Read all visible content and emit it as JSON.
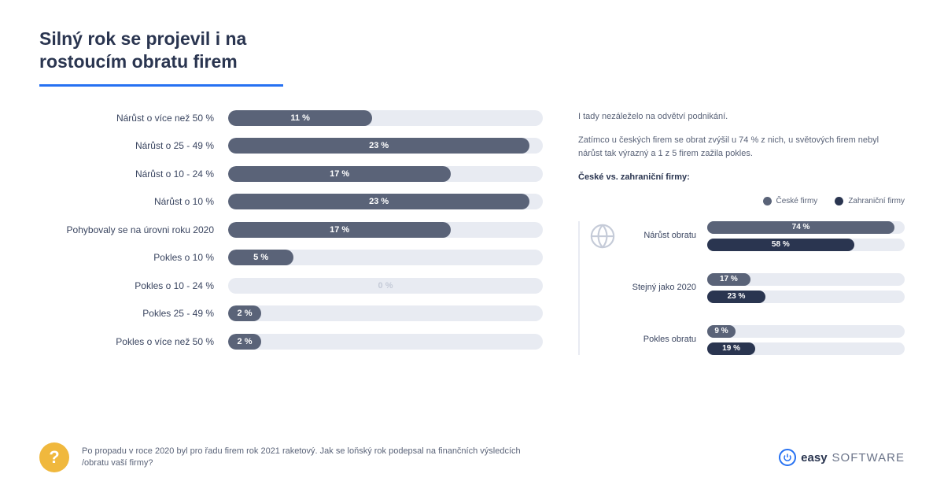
{
  "title": "Silný rok se projevil i na rostoucím obratu firem",
  "colors": {
    "bar_primary": "#5a6378",
    "bar_dark": "#2a3550",
    "track": "#e8ebf2",
    "accent_blue": "#2671f2",
    "accent_yellow": "#f0b83d",
    "text_heading": "#2a3550",
    "text_body": "#5a6378",
    "background": "#ffffff"
  },
  "main_chart": {
    "type": "horizontal_bar",
    "max_value": 24,
    "bar_color": "#5a6378",
    "track_color": "#e8ebf2",
    "label_fontsize": 12,
    "value_fontsize": 11,
    "rows": [
      {
        "label": "Nárůst o více než 50 %",
        "value": 11,
        "text": "11 %"
      },
      {
        "label": "Nárůst o 25 - 49 %",
        "value": 23,
        "text": "23 %"
      },
      {
        "label": "Nárůst o 10 - 24 %",
        "value": 17,
        "text": "17 %"
      },
      {
        "label": "Nárůst o 10 %",
        "value": 23,
        "text": "23 %"
      },
      {
        "label": "Pohybovaly se na úrovni roku 2020",
        "value": 17,
        "text": "17 %"
      },
      {
        "label": "Pokles o 10 %",
        "value": 5,
        "text": "5 %"
      },
      {
        "label": "Pokles o 10 - 24 %",
        "value": 0,
        "text": "0 %"
      },
      {
        "label": "Pokles 25 - 49 %",
        "value": 2,
        "text": "2 %"
      },
      {
        "label": "Pokles o více než 50 %",
        "value": 2,
        "text": "2 %"
      }
    ]
  },
  "side_text": {
    "p1": "I tady nezáleželo na odvětví podnikání.",
    "p2": "Zatímco u českých firem se obrat zvýšil u 74 % z nich, u světových firem nebyl nárůst tak výrazný a 1 z 5 firem zažila pokles.",
    "subtitle": "České vs. zahraniční firmy:"
  },
  "legend": {
    "series1": {
      "label": "České firmy",
      "color": "#5a6378"
    },
    "series2": {
      "label": "Zahraniční firmy",
      "color": "#2a3550"
    }
  },
  "comparison_chart": {
    "type": "grouped_horizontal_bar",
    "max_value": 78,
    "groups": [
      {
        "label": "Nárůst obratu",
        "has_icon": true,
        "bars": [
          {
            "series": "ceske",
            "value": 74,
            "text": "74 %",
            "color": "#5a6378"
          },
          {
            "series": "zahranicni",
            "value": 58,
            "text": "58 %",
            "color": "#2a3550"
          }
        ]
      },
      {
        "label": "Stejný jako 2020",
        "has_icon": false,
        "bars": [
          {
            "series": "ceske",
            "value": 17,
            "text": "17 %",
            "color": "#5a6378"
          },
          {
            "series": "zahranicni",
            "value": 23,
            "text": "23 %",
            "color": "#2a3550"
          }
        ]
      },
      {
        "label": "Pokles obratu",
        "has_icon": false,
        "bars": [
          {
            "series": "ceske",
            "value": 9,
            "text": "9 %",
            "color": "#5a6378"
          },
          {
            "series": "zahranicni",
            "value": 19,
            "text": "19 %",
            "color": "#2a3550"
          }
        ]
      }
    ]
  },
  "footer": {
    "badge": "?",
    "text": "Po propadu v roce 2020 byl pro řadu firem rok 2021 raketový. Jak se loňský rok podepsal na finančních výsledcích /obratu vaší firmy?",
    "logo_bold": "easy",
    "logo_light": "SOFTWARE"
  }
}
